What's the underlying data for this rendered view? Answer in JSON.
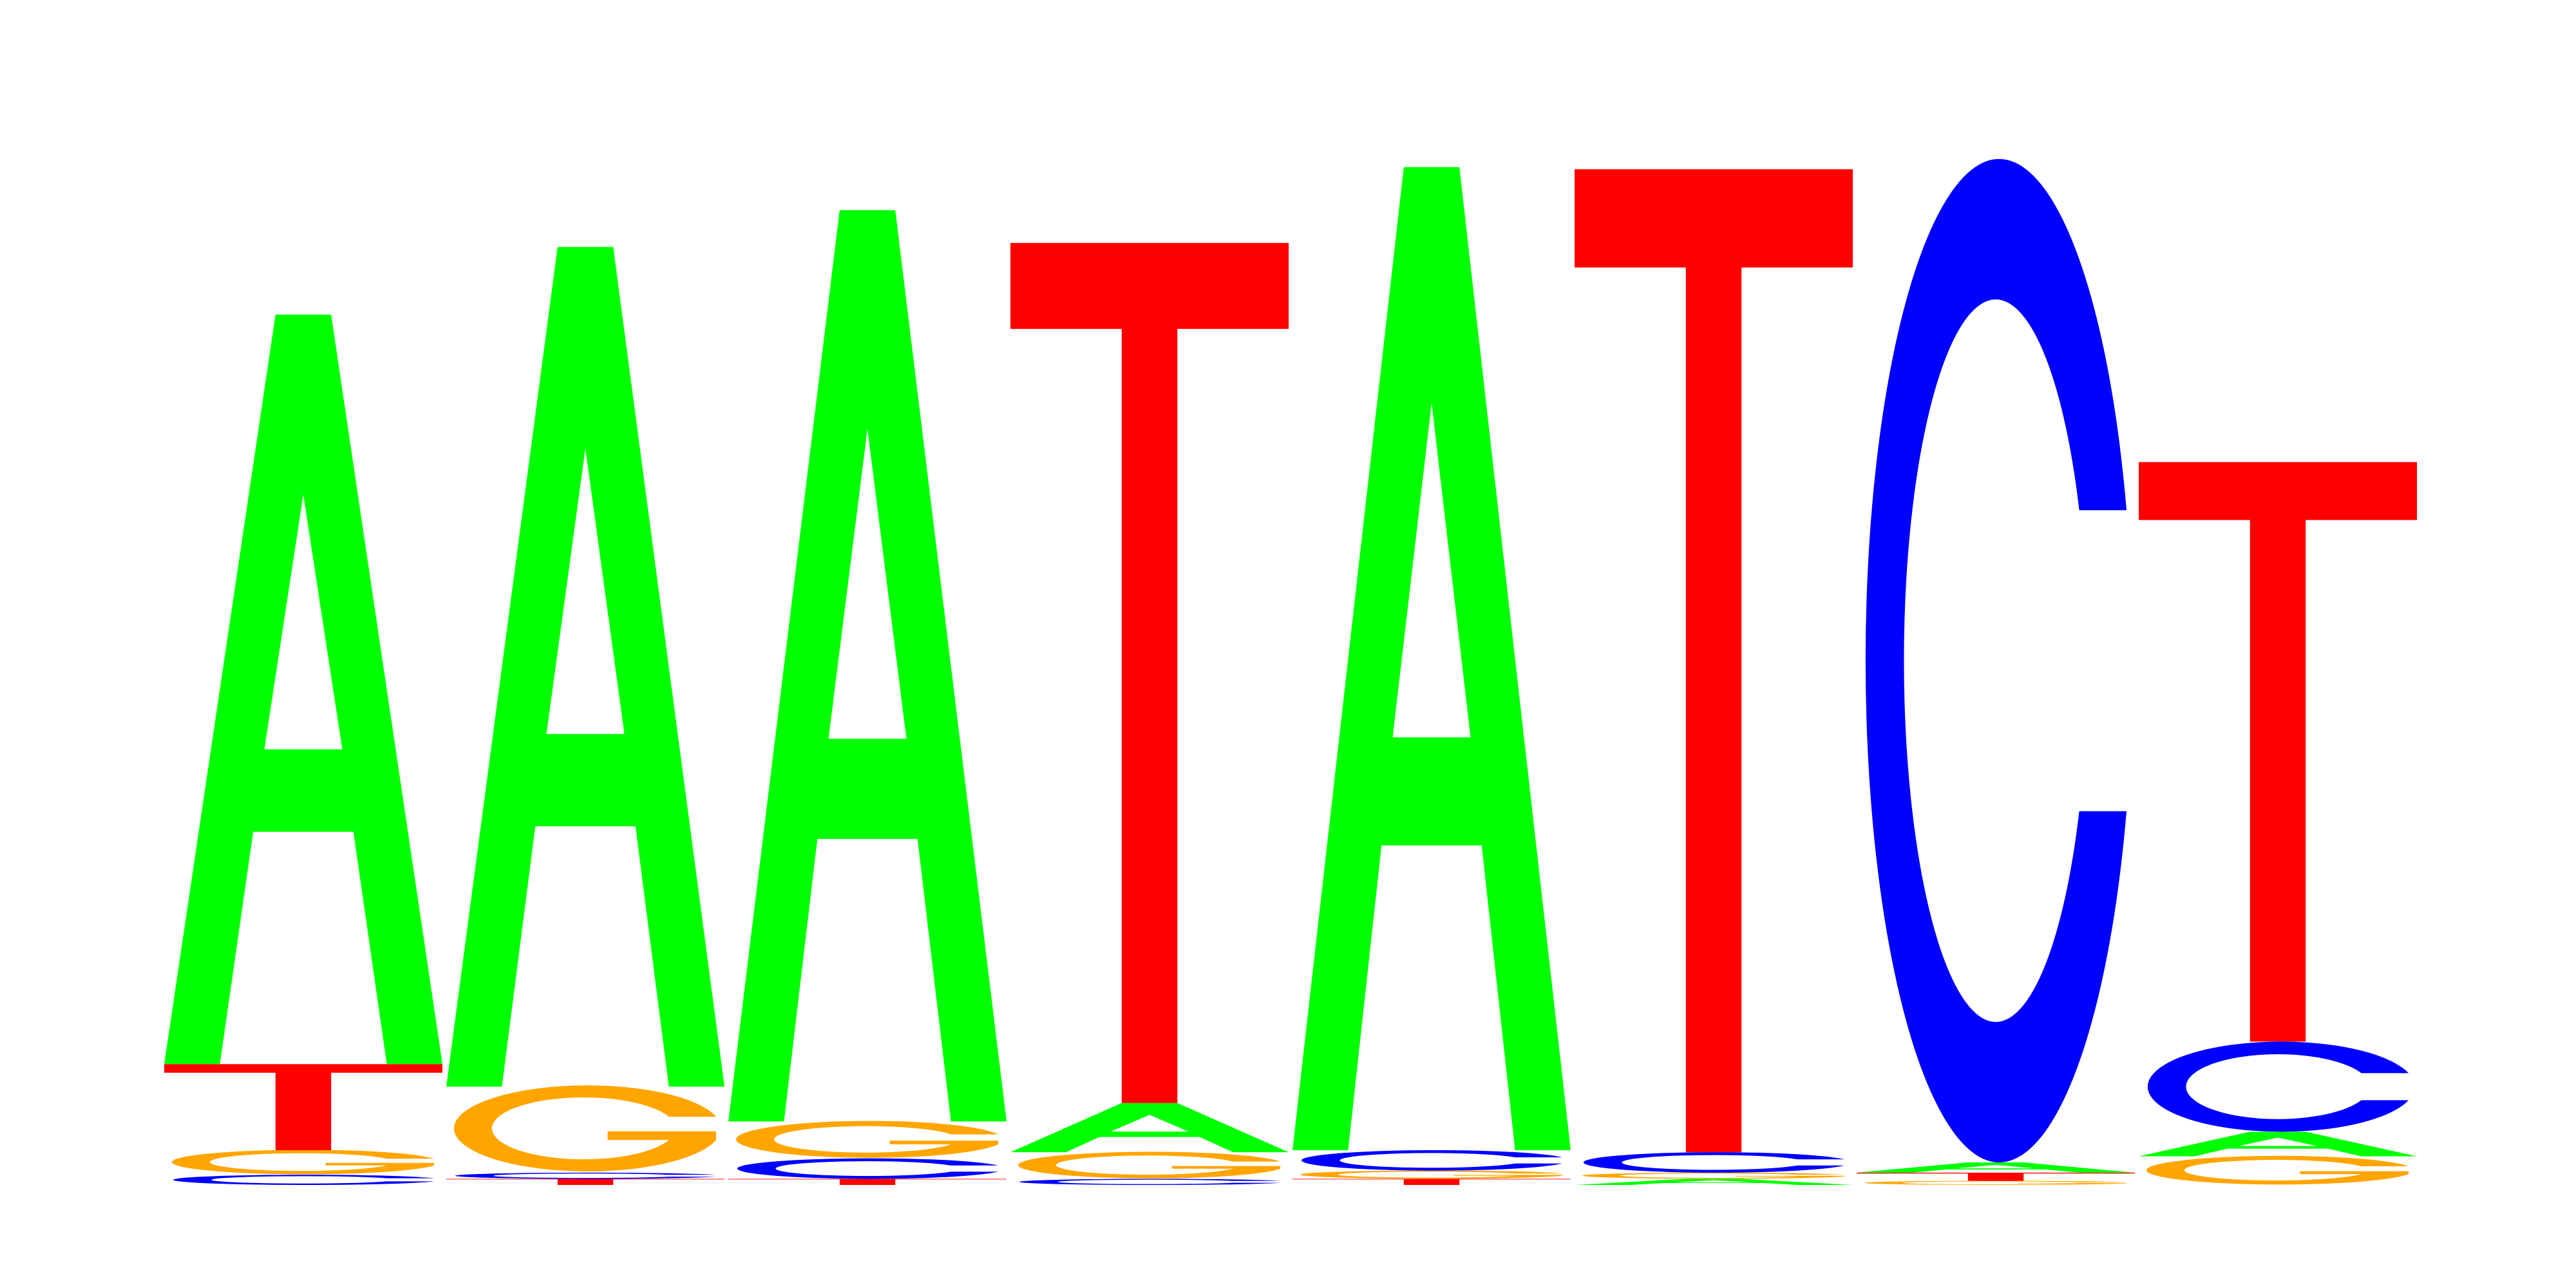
{
  "logo": {
    "colors": {
      "A": "#00ff00",
      "C": "#0000ff",
      "G": "#ffa500",
      "T": "#ff0000"
    },
    "positions": [
      {
        "stack": [
          {
            "letter": "C",
            "height": 0.05
          },
          {
            "letter": "G",
            "height": 0.12
          },
          {
            "letter": "T",
            "height": 0.42
          },
          {
            "letter": "A",
            "height": 3.66
          }
        ]
      },
      {
        "stack": [
          {
            "letter": "T",
            "height": 0.03
          },
          {
            "letter": "C",
            "height": 0.03
          },
          {
            "letter": "G",
            "height": 0.42
          },
          {
            "letter": "A",
            "height": 4.1
          }
        ]
      },
      {
        "stack": [
          {
            "letter": "T",
            "height": 0.03
          },
          {
            "letter": "C",
            "height": 0.1
          },
          {
            "letter": "G",
            "height": 0.18
          },
          {
            "letter": "A",
            "height": 4.45
          }
        ]
      },
      {
        "stack": [
          {
            "letter": "C",
            "height": 0.03
          },
          {
            "letter": "G",
            "height": 0.13
          },
          {
            "letter": "A",
            "height": 0.24
          },
          {
            "letter": "T",
            "height": 4.2
          }
        ]
      },
      {
        "stack": [
          {
            "letter": "T",
            "height": 0.03
          },
          {
            "letter": "G",
            "height": 0.04
          },
          {
            "letter": "C",
            "height": 0.1
          },
          {
            "letter": "A",
            "height": 4.8
          }
        ]
      },
      {
        "stack": [
          {
            "letter": "A",
            "height": 0.03
          },
          {
            "letter": "G",
            "height": 0.03
          },
          {
            "letter": "C",
            "height": 0.1
          },
          {
            "letter": "T",
            "height": 4.8
          }
        ]
      },
      {
        "stack": [
          {
            "letter": "G",
            "height": 0.02
          },
          {
            "letter": "T",
            "height": 0.04
          },
          {
            "letter": "A",
            "height": 0.05
          },
          {
            "letter": "C",
            "height": 4.9
          }
        ]
      },
      {
        "stack": [
          {
            "letter": "G",
            "height": 0.14
          },
          {
            "letter": "A",
            "height": 0.12
          },
          {
            "letter": "C",
            "height": 0.44
          },
          {
            "letter": "T",
            "height": 2.83
          }
        ]
      }
    ]
  }
}
